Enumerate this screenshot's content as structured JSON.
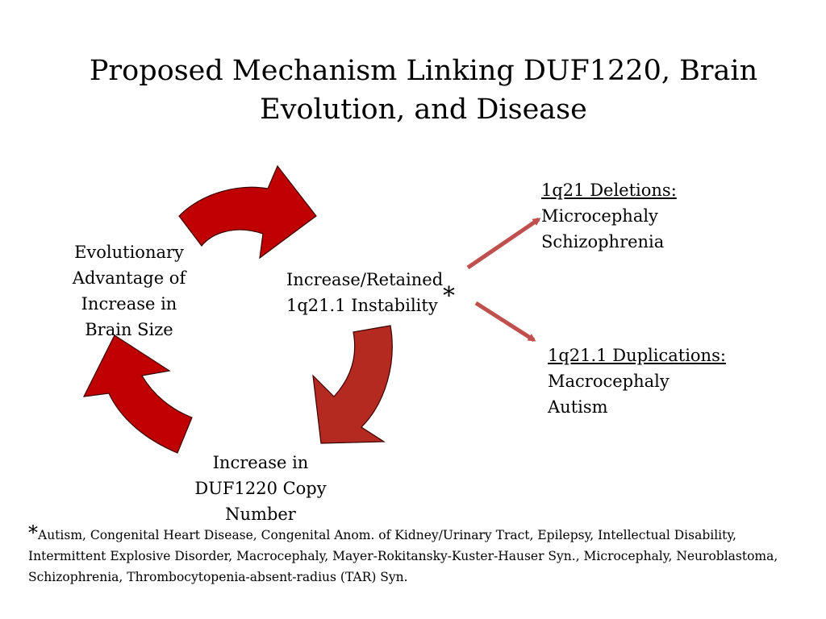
{
  "title": "Proposed Mechanism Linking DUF1220, Brain Evolution, and Disease",
  "cycle_nodes": {
    "evolutionary": [
      "Evolutionary",
      "Advantage of",
      "Increase in",
      "Brain Size"
    ],
    "instability": [
      "Increase/Retained",
      "1q21.1 Instability"
    ],
    "copy_number": [
      "Increase in",
      "DUF1220 Copy",
      "Number"
    ]
  },
  "asterisk": "*",
  "deletions": {
    "heading": "1q21 Deletions:",
    "items": [
      "Microcephaly",
      "Schizophrenia"
    ]
  },
  "duplications": {
    "heading": "1q21.1 Duplications:",
    "items": [
      "Macrocephaly",
      "Autism"
    ]
  },
  "footnote": {
    "marker": "*",
    "text": "Autism, Congenital Heart Disease, Congenital Anom. of Kidney/Urinary Tract, Epilepsy, Intellectual Disability, Intermittent Explosive Disorder, Macrocephaly, Mayer-Rokitansky-Kuster-Hauser Syn., Microcephaly, Neuroblastoma, Schizophrenia, Thrombocytopenia-absent-radius  (TAR) Syn."
  },
  "colors": {
    "cycle_arrow": "#c00000",
    "cycle_arrow_mid": "#b52a20",
    "branch_arrow": "#c0504d"
  }
}
